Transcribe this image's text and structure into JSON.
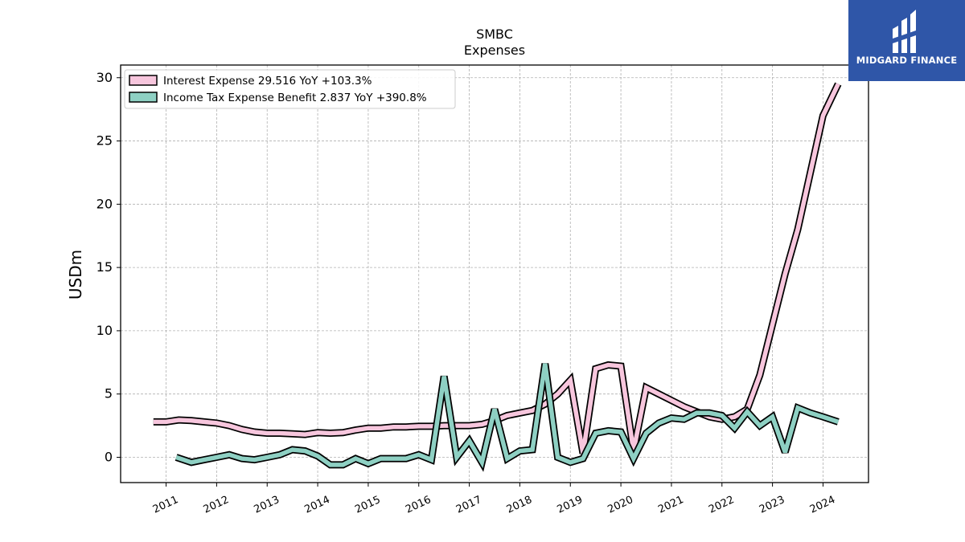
{
  "logo": {
    "text": "MIDGARD FINANCE",
    "mark": "midgard-logo-icon",
    "color": "#2f56a8"
  },
  "chart_data": {
    "type": "line",
    "title": "SMBC",
    "subtitle": "Expenses",
    "ylabel": "USDm",
    "xlabel": "",
    "ylim": [
      -2,
      31
    ],
    "yticks": [
      0,
      5,
      10,
      15,
      20,
      25,
      30
    ],
    "xlim": [
      2010.1,
      2024.9
    ],
    "xticks": [
      2011,
      2012,
      2013,
      2014,
      2015,
      2016,
      2017,
      2018,
      2019,
      2020,
      2021,
      2022,
      2023,
      2024
    ],
    "grid": true,
    "legend_position": "top-left",
    "series": [
      {
        "name": "Interest Expense  29.516 YoY +103.3%",
        "color": "#f7c6dd",
        "x": [
          2010.75,
          2011.0,
          2011.25,
          2011.5,
          2011.75,
          2012.0,
          2012.25,
          2012.5,
          2012.75,
          2013.0,
          2013.25,
          2013.5,
          2013.75,
          2014.0,
          2014.25,
          2014.5,
          2014.75,
          2015.0,
          2015.25,
          2015.5,
          2015.75,
          2016.0,
          2016.25,
          2016.5,
          2016.75,
          2017.0,
          2017.25,
          2017.5,
          2017.75,
          2018.0,
          2018.25,
          2018.5,
          2018.75,
          2019.0,
          2019.25,
          2019.5,
          2019.75,
          2020.0,
          2020.25,
          2020.5,
          2020.75,
          2021.0,
          2021.25,
          2021.5,
          2021.75,
          2022.0,
          2022.25,
          2022.5,
          2022.75,
          2023.0,
          2023.25,
          2023.5,
          2023.75,
          2024.0,
          2024.3
        ],
        "values": [
          2.8,
          2.8,
          2.95,
          2.9,
          2.8,
          2.7,
          2.5,
          2.2,
          2.0,
          1.9,
          1.9,
          1.85,
          1.8,
          1.95,
          1.9,
          1.95,
          2.15,
          2.3,
          2.3,
          2.4,
          2.4,
          2.45,
          2.45,
          2.5,
          2.5,
          2.5,
          2.6,
          2.9,
          3.3,
          3.5,
          3.7,
          4.2,
          5.0,
          6.1,
          0.3,
          7.0,
          7.3,
          7.2,
          0.5,
          5.5,
          5.0,
          4.5,
          4.0,
          3.6,
          3.2,
          3.0,
          3.2,
          3.8,
          6.5,
          10.5,
          14.5,
          18.0,
          22.5,
          27.0,
          29.5
        ]
      },
      {
        "name": "Income Tax Expense Benefit  2.837 YoY +390.8%",
        "color": "#8ed0c3",
        "x": [
          2011.2,
          2011.5,
          2011.75,
          2012.0,
          2012.25,
          2012.5,
          2012.75,
          2013.0,
          2013.25,
          2013.5,
          2013.75,
          2014.0,
          2014.25,
          2014.5,
          2014.75,
          2015.0,
          2015.25,
          2015.5,
          2015.75,
          2016.0,
          2016.25,
          2016.5,
          2016.75,
          2017.0,
          2017.25,
          2017.5,
          2017.75,
          2018.0,
          2018.25,
          2018.5,
          2018.75,
          2019.0,
          2019.25,
          2019.5,
          2019.75,
          2020.0,
          2020.25,
          2020.5,
          2020.75,
          2021.0,
          2021.25,
          2021.5,
          2021.75,
          2022.0,
          2022.25,
          2022.5,
          2022.75,
          2023.0,
          2023.25,
          2023.5,
          2023.75,
          2024.0,
          2024.3
        ],
        "values": [
          0.0,
          -0.4,
          -0.2,
          0.0,
          0.2,
          -0.1,
          -0.2,
          0.0,
          0.2,
          0.6,
          0.5,
          0.1,
          -0.6,
          -0.6,
          -0.1,
          -0.5,
          -0.1,
          -0.1,
          -0.1,
          0.2,
          -0.2,
          6.4,
          0.0,
          1.3,
          -0.4,
          3.8,
          -0.1,
          0.5,
          0.6,
          7.4,
          0.0,
          -0.4,
          -0.1,
          1.9,
          2.1,
          2.0,
          -0.1,
          1.9,
          2.7,
          3.1,
          3.0,
          3.5,
          3.5,
          3.3,
          2.3,
          3.6,
          2.5,
          3.2,
          0.4,
          3.9,
          3.5,
          3.2,
          2.8
        ]
      }
    ]
  }
}
